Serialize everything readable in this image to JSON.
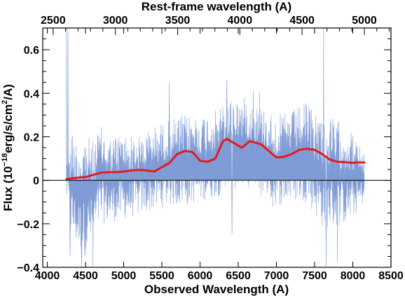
{
  "chart_data": {
    "type": "line",
    "title": "",
    "xlabel": "Observed Wavelength (A)",
    "x2label": "Rest-frame wavelength (A)",
    "ylabel": {
      "prefix": "Flux (10",
      "exp1": "−18",
      "mid": "erg/s/cm",
      "exp2": "2",
      "suffix": "/A)"
    },
    "xlim": [
      3940,
      8500
    ],
    "ylim": [
      -0.4,
      0.7
    ],
    "x2lim": [
      2416.6,
      5214.1
    ],
    "xticks": [
      4000,
      4500,
      5000,
      5500,
      6000,
      6500,
      7000,
      7500,
      8000,
      8500
    ],
    "x2ticks": [
      2500,
      3000,
      3500,
      4000,
      4500,
      5000
    ],
    "yticks": [
      -0.4,
      -0.2,
      0,
      0.2,
      0.4,
      0.6
    ],
    "ytick_labels": [
      "−0.4",
      "−0.2",
      "0",
      "0.2",
      "0.4",
      "0.6"
    ],
    "zero_line": 0,
    "series": [
      {
        "kind": "noisy-spectrum",
        "color": "#7f9bd5",
        "x_range": [
          4250,
          8150
        ],
        "envelope": [
          [
            4250,
            -0.08,
            0.12
          ],
          [
            4300,
            -0.25,
            0.25
          ],
          [
            4400,
            -0.32,
            0.18
          ],
          [
            4500,
            -0.35,
            0.22
          ],
          [
            4600,
            -0.28,
            0.18
          ],
          [
            4700,
            -0.2,
            0.25
          ],
          [
            4800,
            -0.2,
            0.2
          ],
          [
            5000,
            -0.18,
            0.22
          ],
          [
            5200,
            -0.16,
            0.2
          ],
          [
            5400,
            -0.14,
            0.25
          ],
          [
            5600,
            -0.12,
            0.28
          ],
          [
            5800,
            -0.12,
            0.3
          ],
          [
            6000,
            -0.1,
            0.3
          ],
          [
            6200,
            -0.08,
            0.32
          ],
          [
            6400,
            -0.05,
            0.38
          ],
          [
            6600,
            -0.03,
            0.38
          ],
          [
            6800,
            -0.05,
            0.34
          ],
          [
            7000,
            -0.12,
            0.3
          ],
          [
            7200,
            -0.1,
            0.32
          ],
          [
            7400,
            -0.1,
            0.36
          ],
          [
            7600,
            -0.22,
            0.3
          ],
          [
            7800,
            -0.22,
            0.28
          ],
          [
            8000,
            -0.18,
            0.22
          ],
          [
            8150,
            -0.1,
            0.12
          ]
        ],
        "spikes": [
          {
            "x": 4250,
            "y": 0.72
          },
          {
            "x": 4270,
            "y": 0.7
          },
          {
            "x": 4300,
            "y": -0.35
          },
          {
            "x": 4450,
            "y": -0.4
          },
          {
            "x": 4600,
            "y": -0.4
          },
          {
            "x": 5600,
            "y": 0.45
          },
          {
            "x": 6350,
            "y": 0.46
          },
          {
            "x": 6420,
            "y": -0.25
          },
          {
            "x": 6700,
            "y": 0.41
          },
          {
            "x": 6780,
            "y": 0.41
          },
          {
            "x": 6800,
            "y": -0.07
          },
          {
            "x": 6950,
            "y": -0.12
          },
          {
            "x": 7620,
            "y": 0.72
          },
          {
            "x": 7650,
            "y": -0.4
          },
          {
            "x": 7800,
            "y": -0.38
          }
        ]
      },
      {
        "kind": "smoothed",
        "color": "#e41a1c",
        "points": [
          [
            4250,
            0.005
          ],
          [
            4300,
            0.008
          ],
          [
            4400,
            0.012
          ],
          [
            4500,
            0.015
          ],
          [
            4600,
            0.025
          ],
          [
            4700,
            0.035
          ],
          [
            4800,
            0.037
          ],
          [
            4900,
            0.037
          ],
          [
            5000,
            0.04
          ],
          [
            5100,
            0.045
          ],
          [
            5200,
            0.048
          ],
          [
            5300,
            0.045
          ],
          [
            5400,
            0.04
          ],
          [
            5500,
            0.06
          ],
          [
            5600,
            0.08
          ],
          [
            5700,
            0.12
          ],
          [
            5800,
            0.135
          ],
          [
            5900,
            0.13
          ],
          [
            6000,
            0.09
          ],
          [
            6100,
            0.085
          ],
          [
            6200,
            0.1
          ],
          [
            6300,
            0.18
          ],
          [
            6350,
            0.19
          ],
          [
            6400,
            0.18
          ],
          [
            6500,
            0.16
          ],
          [
            6550,
            0.15
          ],
          [
            6600,
            0.165
          ],
          [
            6650,
            0.18
          ],
          [
            6700,
            0.175
          ],
          [
            6800,
            0.165
          ],
          [
            6900,
            0.135
          ],
          [
            7000,
            0.105
          ],
          [
            7100,
            0.108
          ],
          [
            7200,
            0.12
          ],
          [
            7300,
            0.14
          ],
          [
            7400,
            0.145
          ],
          [
            7500,
            0.14
          ],
          [
            7600,
            0.12
          ],
          [
            7700,
            0.095
          ],
          [
            7800,
            0.085
          ],
          [
            7900,
            0.083
          ],
          [
            8000,
            0.08
          ],
          [
            8050,
            0.082
          ],
          [
            8150,
            0.082
          ]
        ]
      }
    ]
  }
}
